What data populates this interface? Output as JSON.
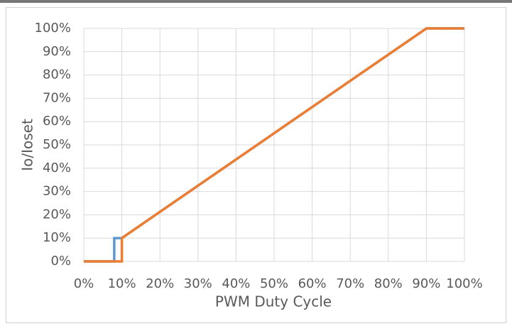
{
  "chart_data": {
    "type": "line",
    "xlabel": "PWM Duty Cycle",
    "ylabel": "Io/Ioset",
    "xlim": [
      0,
      100
    ],
    "ylim": [
      0,
      100
    ],
    "xticks": [
      {
        "value": 0,
        "label": "0%"
      },
      {
        "value": 10,
        "label": "10%"
      },
      {
        "value": 20,
        "label": "20%"
      },
      {
        "value": 30,
        "label": "30%"
      },
      {
        "value": 40,
        "label": "40%"
      },
      {
        "value": 50,
        "label": "50%"
      },
      {
        "value": 60,
        "label": "60%"
      },
      {
        "value": 70,
        "label": "70%"
      },
      {
        "value": 80,
        "label": "80%"
      },
      {
        "value": 90,
        "label": "90%"
      },
      {
        "value": 100,
        "label": "100%"
      }
    ],
    "yticks": [
      {
        "value": 0,
        "label": "0%"
      },
      {
        "value": 10,
        "label": "10%"
      },
      {
        "value": 20,
        "label": "20%"
      },
      {
        "value": 30,
        "label": "30%"
      },
      {
        "value": 40,
        "label": "40%"
      },
      {
        "value": 50,
        "label": "50%"
      },
      {
        "value": 60,
        "label": "60%"
      },
      {
        "value": 70,
        "label": "70%"
      },
      {
        "value": 80,
        "label": "80%"
      },
      {
        "value": 90,
        "label": "90%"
      },
      {
        "value": 100,
        "label": "100%"
      }
    ],
    "grid": true,
    "series": [
      {
        "color": "#5b9bd5",
        "x": [
          0,
          8,
          8,
          10,
          90,
          100
        ],
        "values": [
          0,
          0,
          10,
          10,
          100,
          100
        ]
      },
      {
        "color": "#ed7d31",
        "x": [
          0,
          10,
          10,
          90,
          100
        ],
        "values": [
          0,
          0,
          10,
          100,
          100
        ]
      }
    ]
  }
}
